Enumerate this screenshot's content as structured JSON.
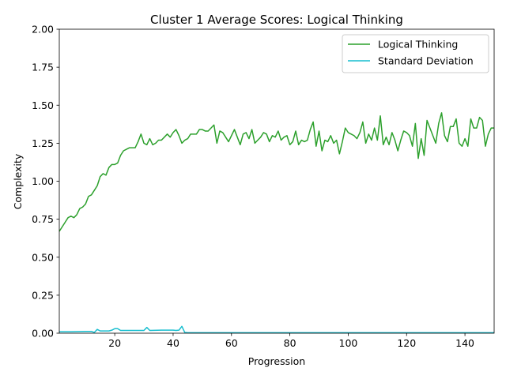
{
  "chart_data": {
    "type": "line",
    "title": "Cluster 1 Average Scores: Logical Thinking",
    "xlabel": "Progression",
    "ylabel": "Complexity",
    "xlim": [
      1,
      150
    ],
    "ylim": [
      0,
      2.0
    ],
    "xticks": [
      20,
      40,
      60,
      80,
      100,
      120,
      140
    ],
    "xtick_labels": [
      "20",
      "40",
      "60",
      "80",
      "100",
      "120",
      "140"
    ],
    "yticks": [
      0,
      0.25,
      0.5,
      0.75,
      1.0,
      1.25,
      1.5,
      1.75,
      2.0
    ],
    "ytick_labels": [
      "0.00",
      "0.25",
      "0.50",
      "0.75",
      "1.00",
      "1.25",
      "1.50",
      "1.75",
      "2.00"
    ],
    "grid": false,
    "legend_position": "top-right",
    "series": [
      {
        "name": "Logical Thinking",
        "color": "#2ca02c",
        "x": [
          1,
          2,
          3,
          4,
          5,
          6,
          7,
          8,
          9,
          10,
          11,
          12,
          13,
          14,
          15,
          16,
          17,
          18,
          19,
          20,
          21,
          22,
          23,
          24,
          25,
          26,
          27,
          28,
          29,
          30,
          31,
          32,
          33,
          34,
          35,
          36,
          37,
          38,
          39,
          40,
          41,
          42,
          43,
          44,
          45,
          46,
          47,
          48,
          49,
          50,
          51,
          52,
          53,
          54,
          55,
          56,
          57,
          58,
          59,
          60,
          61,
          62,
          63,
          64,
          65,
          66,
          67,
          68,
          69,
          70,
          71,
          72,
          73,
          74,
          75,
          76,
          77,
          78,
          79,
          80,
          81,
          82,
          83,
          84,
          85,
          86,
          87,
          88,
          89,
          90,
          91,
          92,
          93,
          94,
          95,
          96,
          97,
          98,
          99,
          100,
          101,
          102,
          103,
          104,
          105,
          106,
          107,
          108,
          109,
          110,
          111,
          112,
          113,
          114,
          115,
          116,
          117,
          118,
          119,
          120,
          121,
          122,
          123,
          124,
          125,
          126,
          127,
          128,
          129,
          130,
          131,
          132,
          133,
          134,
          135,
          136,
          137,
          138,
          139,
          140,
          141,
          142,
          143,
          144,
          145,
          146,
          147,
          148,
          149,
          150
        ],
        "y": [
          0.67,
          0.7,
          0.73,
          0.76,
          0.77,
          0.76,
          0.78,
          0.82,
          0.83,
          0.85,
          0.9,
          0.91,
          0.94,
          0.97,
          1.03,
          1.05,
          1.04,
          1.09,
          1.11,
          1.11,
          1.12,
          1.17,
          1.2,
          1.21,
          1.22,
          1.22,
          1.22,
          1.26,
          1.31,
          1.25,
          1.24,
          1.28,
          1.24,
          1.25,
          1.27,
          1.27,
          1.29,
          1.31,
          1.29,
          1.32,
          1.34,
          1.3,
          1.25,
          1.27,
          1.28,
          1.31,
          1.31,
          1.31,
          1.34,
          1.34,
          1.33,
          1.33,
          1.35,
          1.37,
          1.25,
          1.33,
          1.32,
          1.29,
          1.26,
          1.3,
          1.34,
          1.29,
          1.24,
          1.31,
          1.32,
          1.28,
          1.34,
          1.25,
          1.27,
          1.29,
          1.32,
          1.31,
          1.26,
          1.3,
          1.29,
          1.33,
          1.27,
          1.29,
          1.3,
          1.24,
          1.26,
          1.33,
          1.24,
          1.27,
          1.26,
          1.27,
          1.34,
          1.39,
          1.23,
          1.33,
          1.2,
          1.27,
          1.26,
          1.3,
          1.25,
          1.27,
          1.18,
          1.26,
          1.35,
          1.32,
          1.31,
          1.3,
          1.28,
          1.32,
          1.39,
          1.25,
          1.31,
          1.27,
          1.35,
          1.27,
          1.43,
          1.24,
          1.29,
          1.24,
          1.32,
          1.27,
          1.2,
          1.27,
          1.33,
          1.32,
          1.3,
          1.23,
          1.38,
          1.15,
          1.28,
          1.17,
          1.4,
          1.35,
          1.3,
          1.25,
          1.38,
          1.45,
          1.3,
          1.26,
          1.36,
          1.36,
          1.41,
          1.25,
          1.23,
          1.28,
          1.23,
          1.41,
          1.35,
          1.35,
          1.42,
          1.4,
          1.23,
          1.31,
          1.35,
          1.35
        ]
      },
      {
        "name": "Standard Deviation",
        "color": "#17becf",
        "x": [
          1,
          5,
          10,
          12,
          13,
          14,
          15,
          18,
          19,
          20,
          21,
          22,
          25,
          30,
          31,
          32,
          36,
          40,
          41,
          42,
          43,
          44,
          45,
          60,
          80,
          100,
          120,
          140,
          150
        ],
        "y": [
          0.01,
          0.01,
          0.012,
          0.012,
          0.005,
          0.025,
          0.015,
          0.015,
          0.02,
          0.03,
          0.03,
          0.018,
          0.018,
          0.018,
          0.038,
          0.018,
          0.02,
          0.02,
          0.018,
          0.02,
          0.045,
          0.005,
          0.003,
          0.003,
          0.003,
          0.003,
          0.003,
          0.003,
          0.003
        ]
      }
    ]
  }
}
